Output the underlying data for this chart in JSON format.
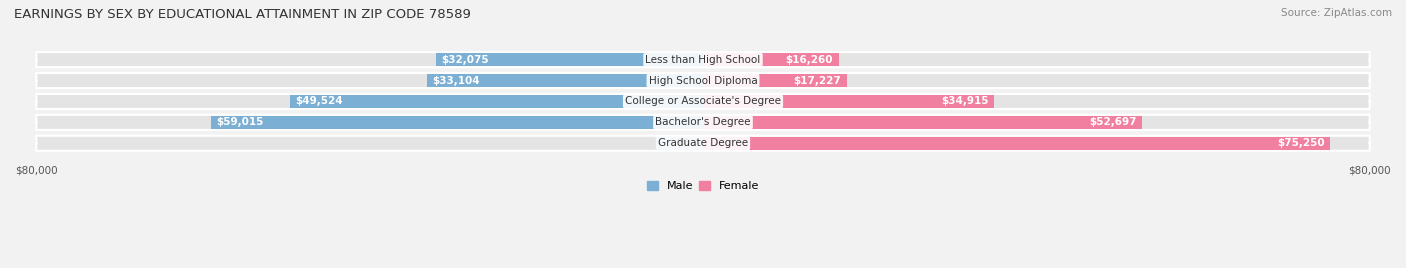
{
  "title": "EARNINGS BY SEX BY EDUCATIONAL ATTAINMENT IN ZIP CODE 78589",
  "source": "Source: ZipAtlas.com",
  "categories": [
    "Less than High School",
    "High School Diploma",
    "College or Associate's Degree",
    "Bachelor's Degree",
    "Graduate Degree"
  ],
  "male_values": [
    32075,
    33104,
    49524,
    59015,
    0
  ],
  "female_values": [
    16260,
    17227,
    34915,
    52697,
    75250
  ],
  "male_color": "#7BAFD4",
  "male_color_light": "#aecde8",
  "female_color": "#F07FA0",
  "male_label_color_inside": "#ffffff",
  "male_label_color_outside": "#555555",
  "female_label_color_inside": "#ffffff",
  "female_label_color_outside": "#555555",
  "background_color": "#f2f2f2",
  "bar_row_color": "#e4e4e4",
  "xlim": 80000,
  "bar_height": 0.72,
  "title_fontsize": 9.5,
  "label_fontsize": 7.5,
  "tick_fontsize": 7.5,
  "category_fontsize": 7.5,
  "legend_fontsize": 8
}
